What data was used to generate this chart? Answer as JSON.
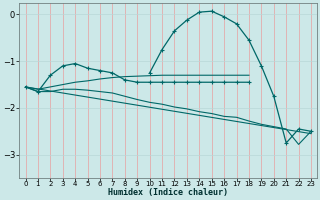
{
  "bg_color": "#cce8e8",
  "grid_color_v": "#e8a0a0",
  "grid_color_h": "#b8d8d8",
  "line_color": "#006868",
  "xlabel": "Humidex (Indice chaleur)",
  "xlim": [
    -0.5,
    23.5
  ],
  "ylim": [
    -3.5,
    0.25
  ],
  "yticks": [
    0,
    -1,
    -2,
    -3
  ],
  "xticks": [
    0,
    1,
    2,
    3,
    4,
    5,
    6,
    7,
    8,
    9,
    10,
    11,
    12,
    13,
    14,
    15,
    16,
    17,
    18,
    19,
    20,
    21,
    22,
    23
  ],
  "series": [
    {
      "x": [
        10,
        11,
        12,
        13,
        14,
        15,
        16,
        17,
        18,
        19,
        20,
        21,
        22,
        23
      ],
      "y": [
        -1.25,
        -0.75,
        -0.35,
        -0.12,
        0.05,
        0.07,
        -0.05,
        -0.2,
        -0.55,
        -1.1,
        -1.75,
        -2.75,
        -2.45,
        -2.5
      ],
      "marker": true,
      "lw": 0.9
    },
    {
      "x": [
        0,
        1,
        2,
        3,
        4,
        5,
        6,
        7,
        8,
        9,
        10,
        11,
        12,
        13,
        14,
        15,
        16,
        17,
        18
      ],
      "y": [
        -1.55,
        -1.65,
        -1.3,
        -1.1,
        -1.05,
        -1.15,
        -1.2,
        -1.25,
        -1.4,
        -1.45,
        -1.45,
        -1.45,
        -1.45,
        -1.45,
        -1.45,
        -1.45,
        -1.45,
        -1.45,
        -1.45
      ],
      "marker": true,
      "lw": 0.9
    },
    {
      "x": [
        0,
        1,
        2,
        3,
        4,
        5,
        6,
        7,
        8,
        9,
        10,
        11,
        12,
        13,
        14,
        15,
        16,
        17,
        18
      ],
      "y": [
        -1.55,
        -1.6,
        -1.55,
        -1.5,
        -1.45,
        -1.42,
        -1.38,
        -1.35,
        -1.33,
        -1.32,
        -1.31,
        -1.3,
        -1.3,
        -1.3,
        -1.3,
        -1.3,
        -1.3,
        -1.3,
        -1.3
      ],
      "marker": false,
      "lw": 0.8
    },
    {
      "x": [
        0,
        1,
        2,
        3,
        4,
        5,
        6,
        7,
        8,
        9,
        10,
        11,
        12,
        13,
        14,
        15,
        16,
        17,
        18,
        19,
        20,
        21,
        22,
        23
      ],
      "y": [
        -1.55,
        -1.65,
        -1.65,
        -1.6,
        -1.6,
        -1.62,
        -1.65,
        -1.68,
        -1.75,
        -1.82,
        -1.88,
        -1.92,
        -1.98,
        -2.02,
        -2.08,
        -2.12,
        -2.18,
        -2.2,
        -2.28,
        -2.35,
        -2.4,
        -2.45,
        -2.78,
        -2.5
      ],
      "marker": false,
      "lw": 0.8
    },
    {
      "x": [
        0,
        23
      ],
      "y": [
        -1.55,
        -2.55
      ],
      "marker": false,
      "lw": 0.8
    }
  ]
}
